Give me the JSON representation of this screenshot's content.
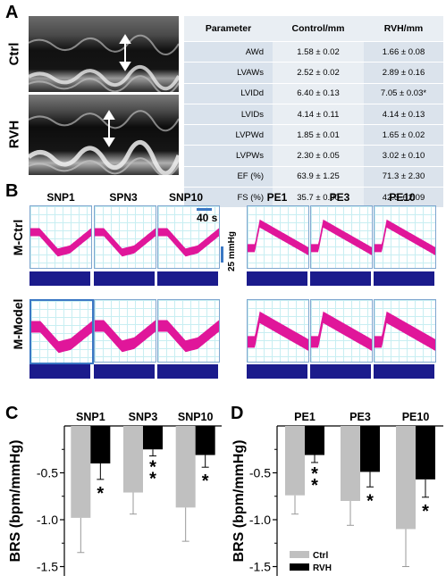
{
  "panel_a": {
    "letter": "A",
    "row_labels": [
      "Ctrl",
      "RVH"
    ],
    "table": {
      "headers": [
        "Parameter",
        "Control/mm",
        "RVH/mm"
      ],
      "rows": [
        [
          "AWd",
          "1.58 ± 0.02",
          "1.66 ± 0.08"
        ],
        [
          "LVAWs",
          "2.52 ± 0.02",
          "2.89 ± 0.16"
        ],
        [
          "LVIDd",
          "6.40 ± 0.13",
          "7.05 ± 0.03*"
        ],
        [
          "LVIDs",
          "4.14 ± 0.11",
          "4.14 ± 0.13"
        ],
        [
          "LVPWd",
          "1.85 ± 0.01",
          "1.65 ± 0.02"
        ],
        [
          "LVPWs",
          "2.30 ± 0.05",
          "3.02 ± 0.10"
        ],
        [
          "EF (%)",
          "63.9 ± 1.25",
          "71.3 ± 2.30"
        ],
        [
          "FS (%)",
          "35.7 ± 0.90",
          "42.3 ± 2.09"
        ]
      ]
    }
  },
  "panel_b": {
    "letter": "B",
    "left_titles": [
      "SNP1",
      "SPN3",
      "SNP10"
    ],
    "right_titles": [
      "PE1",
      "PE3",
      "PE10"
    ],
    "row_labels": [
      "M-Ctrl",
      "M-Model"
    ],
    "time_scale": "40 s",
    "pressure_scale": "25 mmHg",
    "trace_color": "#e0169a",
    "hr_color": "#1b1b8c"
  },
  "chart_data": [
    {
      "type": "bar",
      "panel": "C",
      "categories": [
        "SNP1",
        "SNP3",
        "SNP10"
      ],
      "series": [
        {
          "name": "Ctrl",
          "values": [
            -0.98,
            -0.71,
            -0.87
          ],
          "errors": [
            0.37,
            0.23,
            0.36
          ],
          "color": "#c0c0c0"
        },
        {
          "name": "RVH",
          "values": [
            -0.4,
            -0.25,
            -0.31
          ],
          "errors": [
            0.17,
            0.07,
            0.13
          ],
          "color": "#000000"
        }
      ],
      "significance": [
        "*",
        "**",
        "*"
      ],
      "ylabel": "BRS (bpm/mmHg)",
      "ylim": [
        -1.6,
        0
      ],
      "yticks": [
        "-0.5",
        "-1.0",
        "-1.5"
      ]
    },
    {
      "type": "bar",
      "panel": "D",
      "categories": [
        "PE1",
        "PE3",
        "PE10"
      ],
      "series": [
        {
          "name": "Ctrl",
          "values": [
            -0.74,
            -0.8,
            -1.1
          ],
          "errors": [
            0.2,
            0.26,
            0.4
          ],
          "color": "#c0c0c0"
        },
        {
          "name": "RVH",
          "values": [
            -0.31,
            -0.49,
            -0.57
          ],
          "errors": [
            0.08,
            0.16,
            0.19
          ],
          "color": "#000000"
        }
      ],
      "significance": [
        "**",
        "*",
        "*"
      ],
      "ylabel": "BRS (bpm/mmHg)",
      "ylim": [
        -1.6,
        0
      ],
      "yticks": [
        "-0.5",
        "-1.0",
        "-1.5"
      ],
      "legend": [
        "Ctrl",
        "RVH"
      ],
      "legend_placement": "bottom-left"
    }
  ]
}
